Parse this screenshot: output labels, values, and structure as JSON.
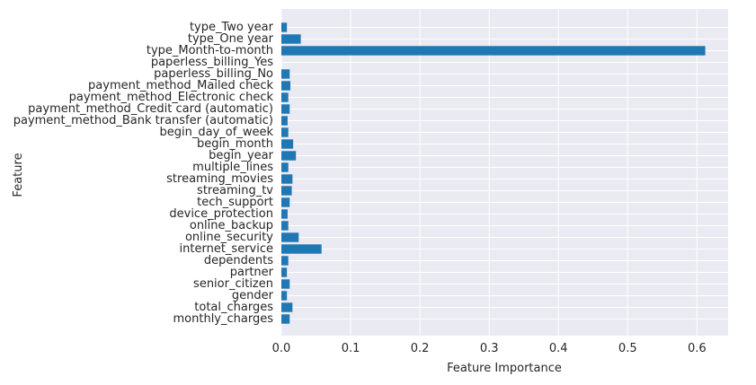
{
  "chart_data": {
    "type": "bar",
    "orientation": "horizontal",
    "title": "",
    "xlabel": "Feature Importance",
    "ylabel": "Feature",
    "xlim": [
      0,
      0.645
    ],
    "grid": true,
    "background_color": "#eaeaf2",
    "bar_color": "#1f77b4",
    "x_ticks": [
      0.0,
      0.1,
      0.2,
      0.3,
      0.4,
      0.5,
      0.6
    ],
    "x_tick_labels": [
      "0.0",
      "0.1",
      "0.2",
      "0.3",
      "0.4",
      "0.5",
      "0.6"
    ],
    "categories": [
      "monthly_charges",
      "total_charges",
      "gender",
      "senior_citizen",
      "partner",
      "dependents",
      "internet_service",
      "online_security",
      "online_backup",
      "device_protection",
      "tech_support",
      "streaming_tv",
      "streaming_movies",
      "multiple_lines",
      "begin_year",
      "begin_month",
      "begin_day_of_week",
      "payment_method_Bank transfer (automatic)",
      "payment_method_Credit card (automatic)",
      "payment_method_Electronic check",
      "payment_method_Mailed check",
      "paperless_billing_No",
      "paperless_billing_Yes",
      "type_Month-to-month",
      "type_One year",
      "type_Two year"
    ],
    "values": [
      0.012,
      0.016,
      0.008,
      0.012,
      0.008,
      0.01,
      0.058,
      0.025,
      0.01,
      0.009,
      0.012,
      0.015,
      0.016,
      0.01,
      0.021,
      0.017,
      0.01,
      0.009,
      0.012,
      0.01,
      0.013,
      0.012,
      0.0,
      0.612,
      0.028,
      0.008
    ]
  }
}
